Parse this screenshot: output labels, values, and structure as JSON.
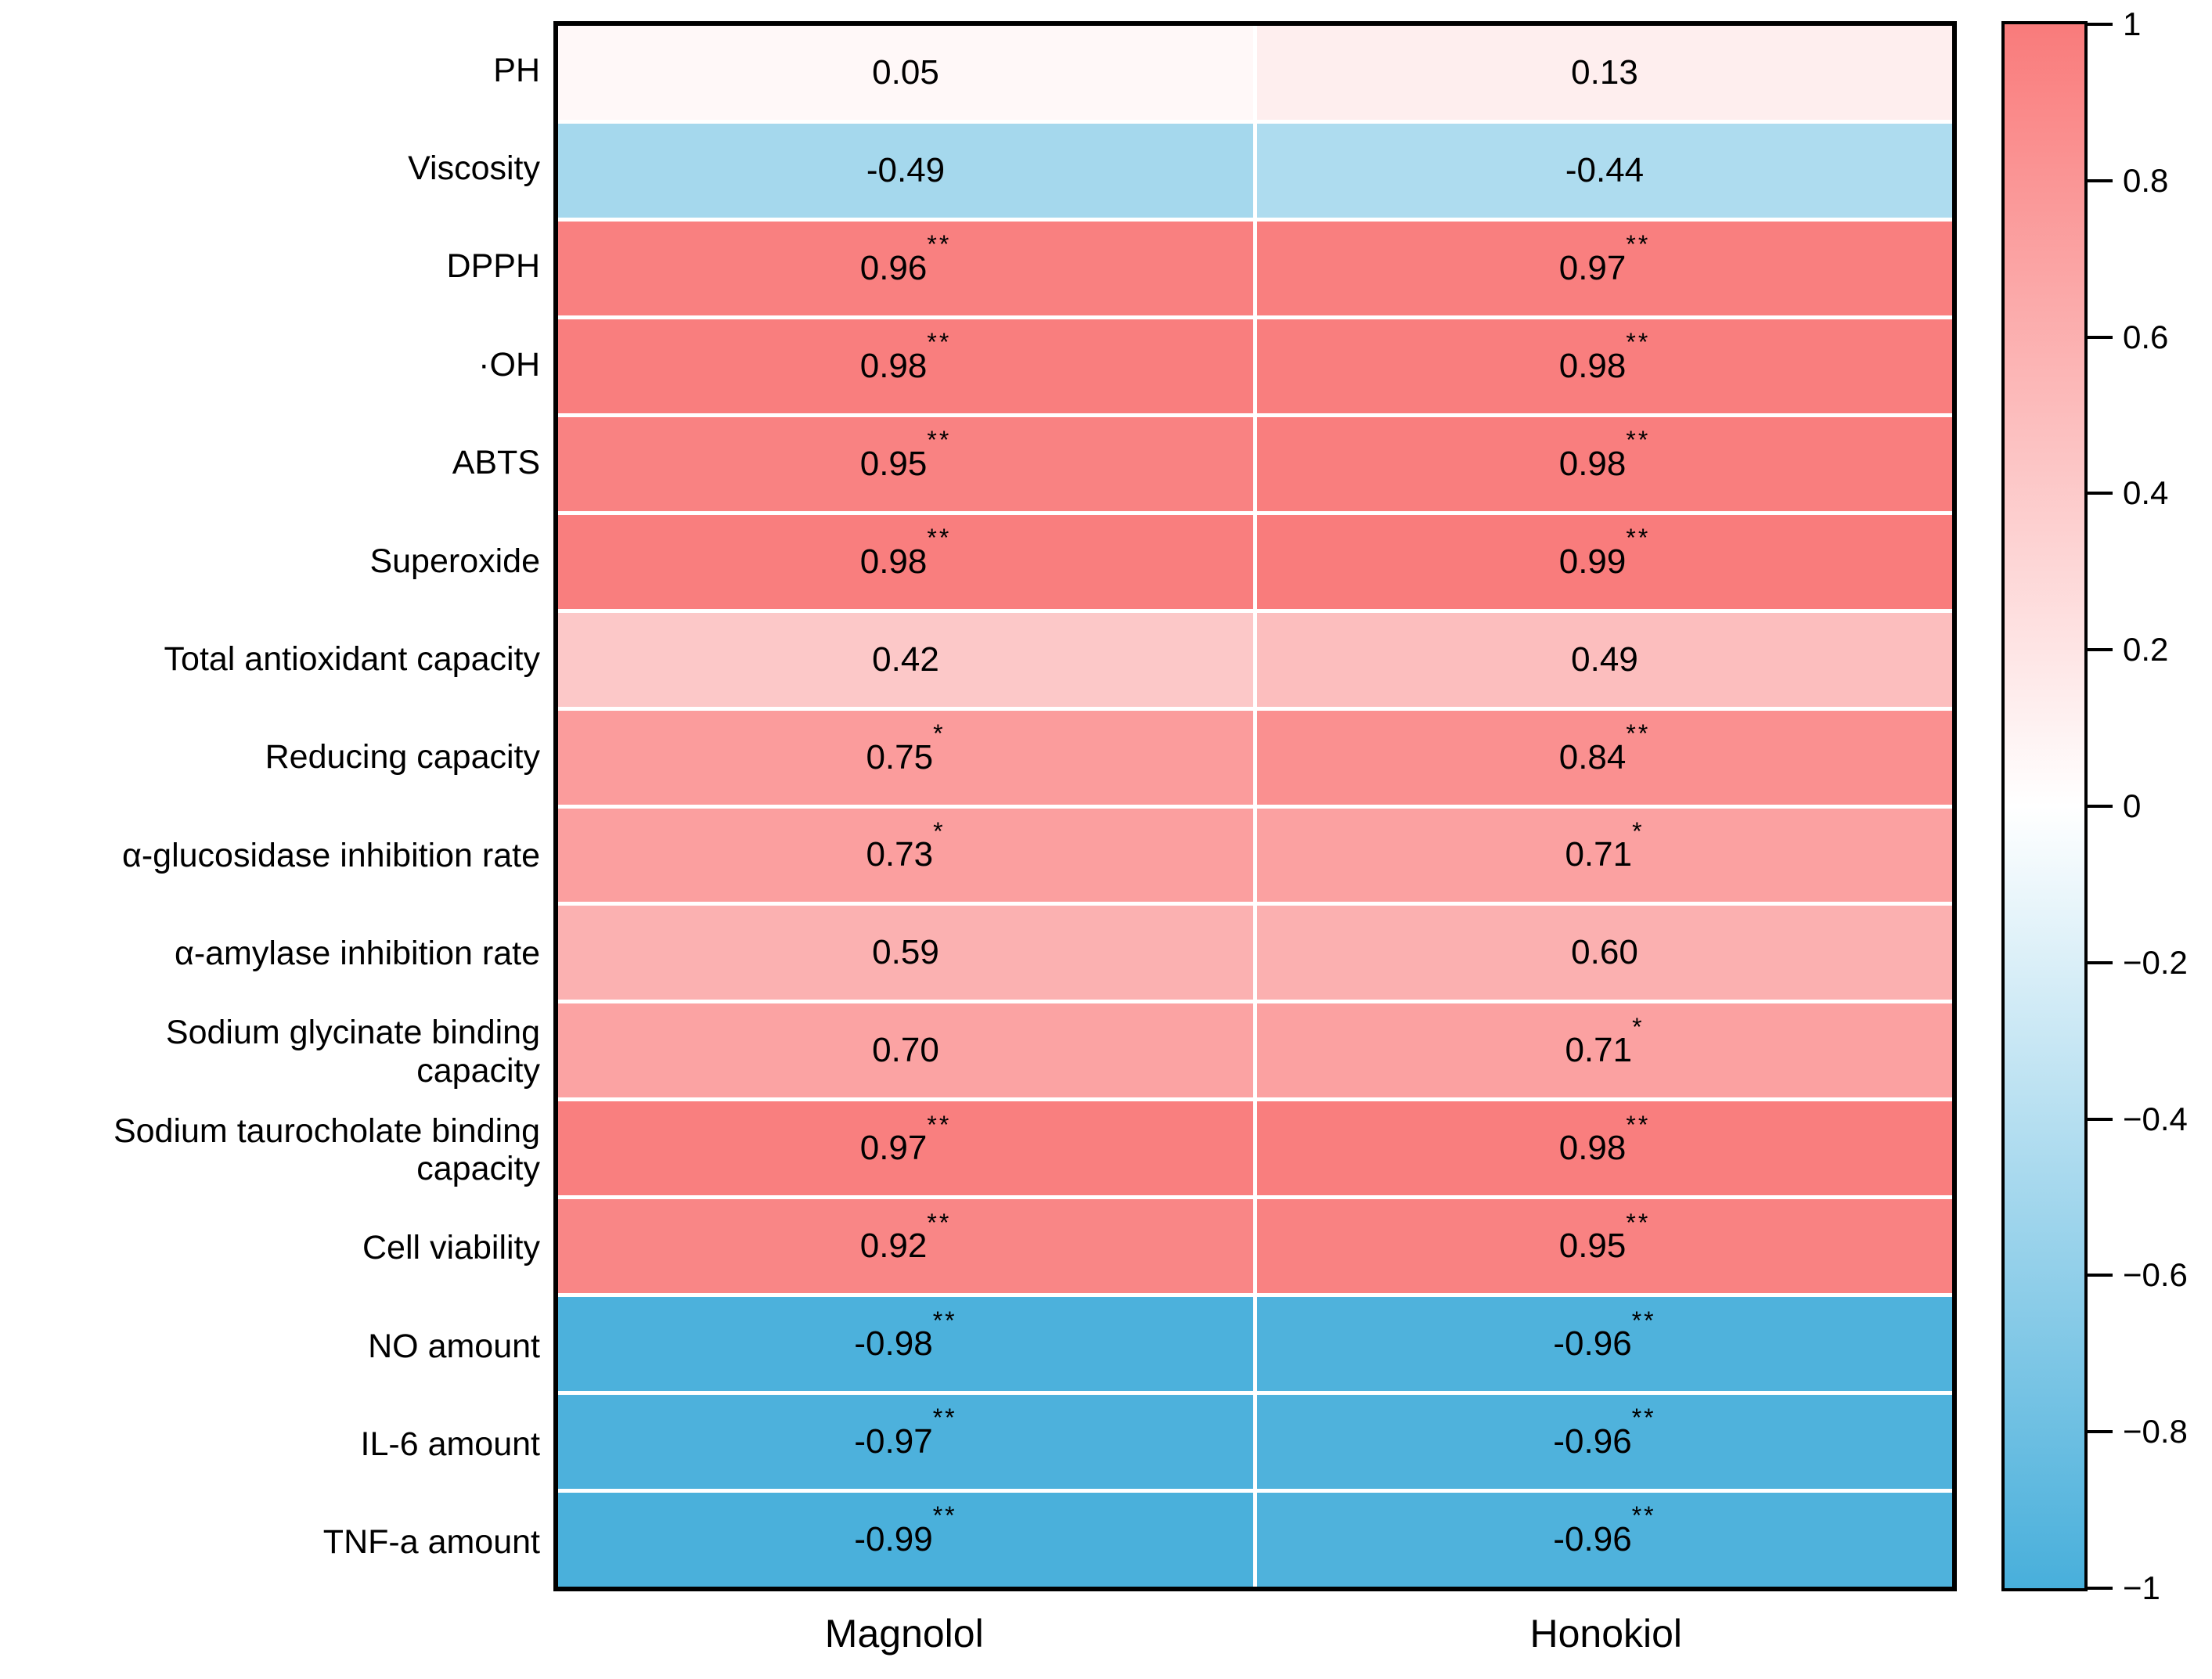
{
  "chart_data": {
    "type": "heatmap",
    "title": "",
    "xlabel": "",
    "ylabel": "",
    "columns": [
      "Magnolol",
      "Honokiol"
    ],
    "rows": [
      {
        "label": "PH",
        "cells": [
          {
            "text": "0.05",
            "stars": "",
            "value": 0.05
          },
          {
            "text": "0.13",
            "stars": "",
            "value": 0.13
          }
        ]
      },
      {
        "label": "Viscosity",
        "cells": [
          {
            "text": "-0.49",
            "stars": "",
            "value": -0.49
          },
          {
            "text": "-0.44",
            "stars": "",
            "value": -0.44
          }
        ]
      },
      {
        "label": "DPPH",
        "cells": [
          {
            "text": "0.96",
            "stars": "**",
            "value": 0.96
          },
          {
            "text": "0.97",
            "stars": "**",
            "value": 0.97
          }
        ]
      },
      {
        "label": "·OH",
        "cells": [
          {
            "text": "0.98",
            "stars": "**",
            "value": 0.98
          },
          {
            "text": "0.98",
            "stars": "**",
            "value": 0.98
          }
        ]
      },
      {
        "label": "ABTS",
        "cells": [
          {
            "text": "0.95",
            "stars": "**",
            "value": 0.95
          },
          {
            "text": "0.98",
            "stars": "**",
            "value": 0.98
          }
        ]
      },
      {
        "label": "Superoxide",
        "cells": [
          {
            "text": "0.98",
            "stars": "**",
            "value": 0.98
          },
          {
            "text": "0.99",
            "stars": "**",
            "value": 0.99
          }
        ]
      },
      {
        "label": "Total antioxidant capacity",
        "cells": [
          {
            "text": "0.42",
            "stars": "",
            "value": 0.42
          },
          {
            "text": "0.49",
            "stars": "",
            "value": 0.49
          }
        ]
      },
      {
        "label": "Reducing capacity",
        "cells": [
          {
            "text": "0.75",
            "stars": "*",
            "value": 0.75
          },
          {
            "text": "0.84",
            "stars": "**",
            "value": 0.84
          }
        ]
      },
      {
        "label": "α-glucosidase inhibition rate",
        "cells": [
          {
            "text": "0.73",
            "stars": "*",
            "value": 0.73
          },
          {
            "text": "0.71",
            "stars": "*",
            "value": 0.71
          }
        ]
      },
      {
        "label": "α-amylase inhibition rate",
        "cells": [
          {
            "text": "0.59",
            "stars": "",
            "value": 0.59
          },
          {
            "text": "0.60",
            "stars": "",
            "value": 0.6
          }
        ]
      },
      {
        "label": "Sodium glycinate binding\ncapacity",
        "cells": [
          {
            "text": "0.70",
            "stars": "",
            "value": 0.7
          },
          {
            "text": "0.71",
            "stars": "*",
            "value": 0.71
          }
        ]
      },
      {
        "label": "Sodium taurocholate binding\ncapacity",
        "cells": [
          {
            "text": "0.97",
            "stars": "**",
            "value": 0.97
          },
          {
            "text": "0.98",
            "stars": "**",
            "value": 0.98
          }
        ]
      },
      {
        "label": "Cell viability",
        "cells": [
          {
            "text": "0.92",
            "stars": "**",
            "value": 0.92
          },
          {
            "text": "0.95",
            "stars": "**",
            "value": 0.95
          }
        ]
      },
      {
        "label": "NO amount",
        "cells": [
          {
            "text": "-0.98",
            "stars": "**",
            "value": -0.98
          },
          {
            "text": "-0.96",
            "stars": "**",
            "value": -0.96
          }
        ]
      },
      {
        "label": "IL-6 amount",
        "cells": [
          {
            "text": "-0.97",
            "stars": "**",
            "value": -0.97
          },
          {
            "text": "-0.96",
            "stars": "**",
            "value": -0.96
          }
        ]
      },
      {
        "label": "TNF-a amount",
        "cells": [
          {
            "text": "-0.99",
            "stars": "**",
            "value": -0.99
          },
          {
            "text": "-0.96",
            "stars": "**",
            "value": -0.96
          }
        ]
      }
    ],
    "colorscale": {
      "min": -1,
      "max": 1,
      "negative_color": "#48afdb",
      "zero_color": "#ffffff",
      "positive_color": "#f97b7b"
    },
    "colorbar_ticks": [
      {
        "label": "1",
        "value": 1
      },
      {
        "label": "0.8",
        "value": 0.8
      },
      {
        "label": "0.6",
        "value": 0.6
      },
      {
        "label": "0.4",
        "value": 0.4
      },
      {
        "label": "0.2",
        "value": 0.2
      },
      {
        "label": "0",
        "value": 0
      },
      {
        "label": "−0.2",
        "value": -0.2
      },
      {
        "label": "−0.4",
        "value": -0.4
      },
      {
        "label": "−0.6",
        "value": -0.6
      },
      {
        "label": "−0.8",
        "value": -0.8
      },
      {
        "label": "−1",
        "value": -1
      }
    ],
    "grid": false,
    "legend_position": "right"
  }
}
